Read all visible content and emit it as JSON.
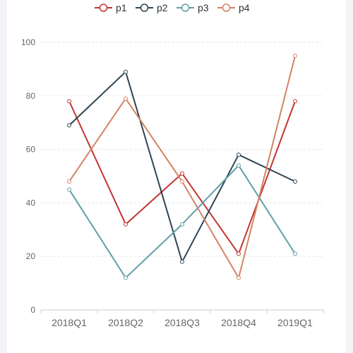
{
  "chart_data": {
    "type": "line",
    "title": "",
    "xlabel": "",
    "ylabel": "",
    "categories": [
      "2018Q1",
      "2018Q2",
      "2018Q3",
      "2018Q4",
      "2019Q1"
    ],
    "ylim": [
      0,
      100
    ],
    "yticks": [
      0,
      20,
      40,
      60,
      80,
      100
    ],
    "grid": true,
    "legend_position": "top-center",
    "series": [
      {
        "name": "p1",
        "color": "#c23531",
        "values": [
          78,
          32,
          51,
          21,
          78
        ]
      },
      {
        "name": "p2",
        "color": "#2f4554",
        "values": [
          69,
          89,
          18,
          58,
          48
        ]
      },
      {
        "name": "p3",
        "color": "#61a0a8",
        "values": [
          45,
          12,
          32,
          54,
          21
        ]
      },
      {
        "name": "p4",
        "color": "#d48265",
        "values": [
          48,
          79,
          48,
          12,
          95
        ]
      }
    ]
  }
}
